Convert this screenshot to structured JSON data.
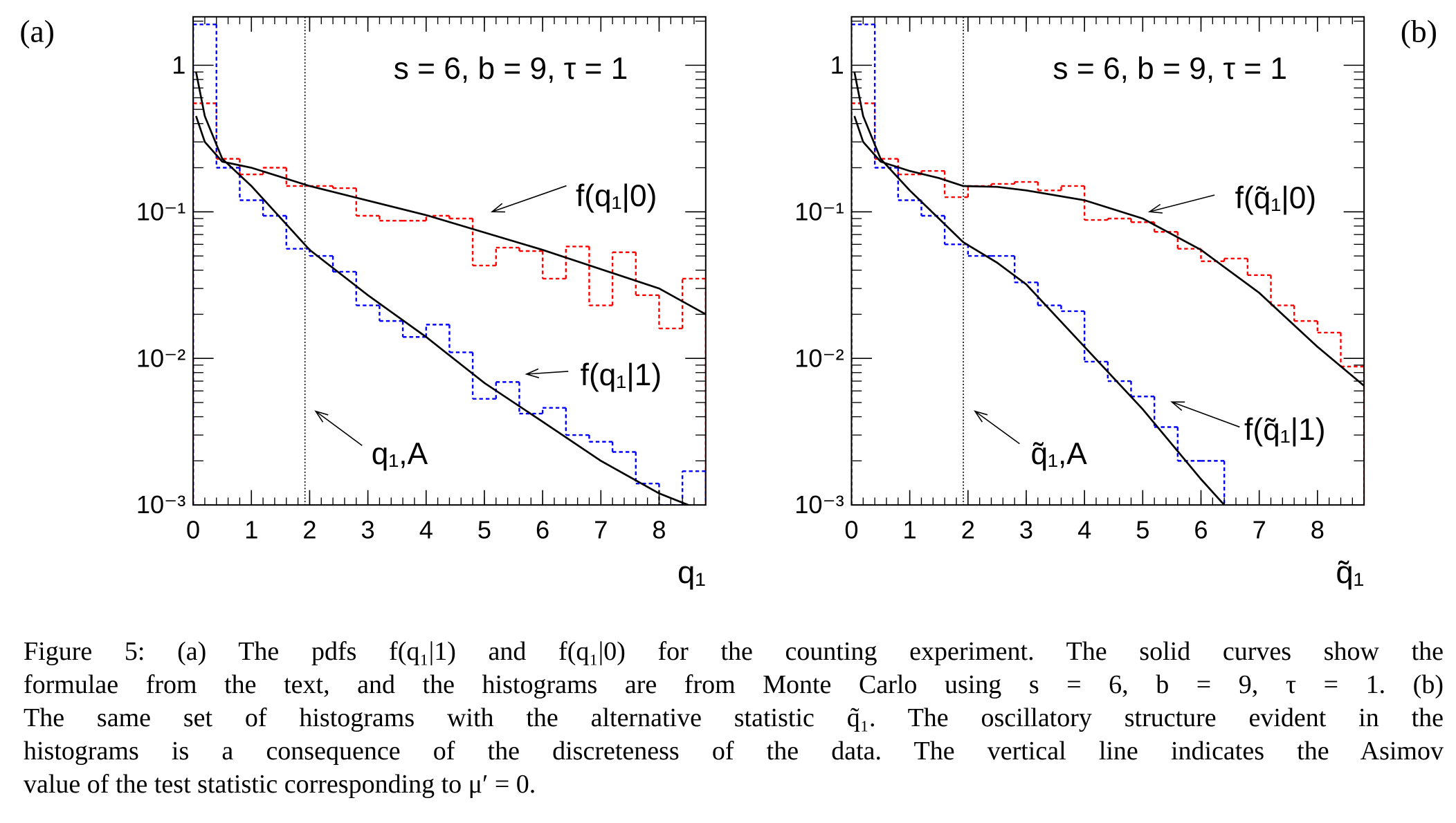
{
  "chart_data": [
    {
      "type": "histogram",
      "panel_label": "(a)",
      "annotation": "s = 6, b = 9, τ = 1",
      "xlabel": "q₁",
      "xlim": [
        0,
        8.8
      ],
      "ylim": [
        0.001,
        2.14
      ],
      "log_y": true,
      "xticks": [
        0,
        1,
        2,
        3,
        4,
        5,
        6,
        7,
        8
      ],
      "yticks": [
        {
          "value": 0.001,
          "label": "10⁻³"
        },
        {
          "value": 0.01,
          "label": "10⁻²"
        },
        {
          "value": 0.1,
          "label": "10⁻¹"
        },
        1
      ],
      "bins": [
        0,
        0.4,
        0.8,
        1.2,
        1.6,
        2.0,
        2.4,
        2.8,
        3.2,
        3.6,
        4.0,
        4.4,
        4.8,
        5.2,
        5.6,
        6.0,
        6.4,
        6.8,
        7.2,
        7.6,
        8.0,
        8.4,
        8.8
      ],
      "asimov": {
        "value": 1.92,
        "label": "q₁,A"
      },
      "series": [
        {
          "name": "f(q₁|0)",
          "color": "#ff0000",
          "values": [
            0.55,
            0.23,
            0.18,
            0.2,
            0.15,
            0.15,
            0.145,
            0.094,
            0.087,
            0.087,
            0.094,
            0.09,
            0.043,
            0.057,
            0.054,
            0.035,
            0.058,
            0.023,
            0.053,
            0.027,
            0.016,
            0.035
          ],
          "curve": {
            "x": [
              0.05,
              0.2,
              0.5,
              1,
              2,
              4,
              6,
              8,
              8.8
            ],
            "values": [
              0.45,
              0.3,
              0.22,
              0.2,
              0.15,
              0.095,
              0.055,
              0.03,
              0.02
            ]
          }
        },
        {
          "name": "f(q₁|1)",
          "color": "#0000ff",
          "values": [
            1.9,
            0.2,
            0.12,
            0.094,
            0.056,
            0.05,
            0.039,
            0.023,
            0.018,
            0.014,
            0.017,
            0.011,
            0.0053,
            0.0069,
            0.0042,
            0.0046,
            0.003,
            0.0027,
            0.0023,
            0.0014,
            0.0009,
            0.0017
          ],
          "curve": {
            "x": [
              0.05,
              0.2,
              0.5,
              1,
              2,
              3,
              4,
              5,
              6,
              7,
              8,
              8.5
            ],
            "values": [
              0.9,
              0.45,
              0.23,
              0.15,
              0.055,
              0.027,
              0.014,
              0.0068,
              0.0037,
              0.002,
              0.0012,
              0.001
            ]
          }
        }
      ]
    },
    {
      "type": "histogram",
      "panel_label": "(b)",
      "annotation": "s = 6, b = 9, τ = 1",
      "xlabel": "q̃₁",
      "xlim": [
        0,
        8.8
      ],
      "ylim": [
        0.001,
        2.14
      ],
      "log_y": true,
      "xticks": [
        0,
        1,
        2,
        3,
        4,
        5,
        6,
        7,
        8
      ],
      "yticks": [
        {
          "value": 0.001,
          "label": "10⁻³"
        },
        {
          "value": 0.01,
          "label": "10⁻²"
        },
        {
          "value": 0.1,
          "label": "10⁻¹"
        },
        1
      ],
      "bins": [
        0,
        0.4,
        0.8,
        1.2,
        1.6,
        2.0,
        2.4,
        2.8,
        3.2,
        3.6,
        4.0,
        4.4,
        4.8,
        5.2,
        5.6,
        6.0,
        6.4,
        6.8,
        7.2,
        7.6,
        8.0,
        8.4,
        8.8
      ],
      "asimov": {
        "value": 1.92,
        "label": "q̃₁,A"
      },
      "series": [
        {
          "name": "f(q̃₁|0)",
          "color": "#ff0000",
          "values": [
            0.55,
            0.23,
            0.18,
            0.19,
            0.126,
            0.15,
            0.155,
            0.16,
            0.14,
            0.15,
            0.088,
            0.09,
            0.085,
            0.073,
            0.056,
            0.046,
            0.048,
            0.037,
            0.023,
            0.018,
            0.015,
            0.0088
          ],
          "curve": {
            "x": [
              0.05,
              0.2,
              0.5,
              1,
              1.5,
              1.92,
              2.5,
              3,
              4,
              5,
              6,
              7,
              8,
              8.8
            ],
            "values": [
              0.45,
              0.3,
              0.22,
              0.19,
              0.17,
              0.15,
              0.148,
              0.14,
              0.12,
              0.09,
              0.055,
              0.028,
              0.012,
              0.0065
            ]
          }
        },
        {
          "name": "f(q̃₁|1)",
          "color": "#0000ff",
          "values": [
            1.9,
            0.2,
            0.12,
            0.094,
            0.06,
            0.05,
            0.05,
            0.033,
            0.023,
            0.021,
            0.0095,
            0.007,
            0.0055,
            0.0034,
            0.002,
            0.002,
            null,
            null,
            null,
            null,
            null,
            null
          ],
          "curve": {
            "x": [
              0.05,
              0.2,
              0.5,
              1,
              1.5,
              1.92,
              2.5,
              3,
              4,
              5,
              6,
              6.4
            ],
            "values": [
              0.9,
              0.45,
              0.23,
              0.14,
              0.09,
              0.062,
              0.045,
              0.032,
              0.012,
              0.0045,
              0.0015,
              0.001
            ]
          }
        }
      ]
    }
  ],
  "caption": {
    "lines": [
      "Figure 5: (a) The pdfs f(q₁|1) and f(q₁|0) for the counting experiment. The solid curves show the",
      "formulae from the text, and the histograms are from Monte Carlo using s = 6, b = 9, τ = 1. (b)",
      "The same set of histograms with the alternative statistic q̃₁. The oscillatory structure evident in the",
      "histograms is a consequence of the discreteness of the data. The vertical line indicates the Asimov",
      "value of the test statistic corresponding to μ′ = 0."
    ]
  }
}
